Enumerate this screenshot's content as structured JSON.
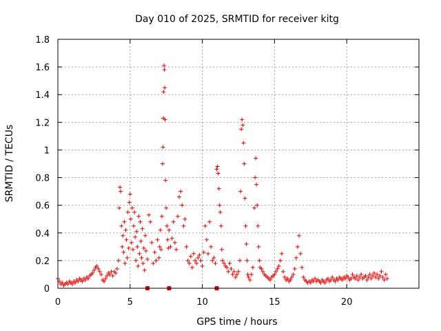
{
  "chart_data": {
    "type": "scatter",
    "title": "Day 010 of 2025, SRMTID for receiver kitg",
    "xlabel": "GPS time / hours",
    "ylabel": "SRMTID / TECUs",
    "xlim": [
      0,
      25
    ],
    "ylim": [
      0,
      1.8
    ],
    "xticks": [
      0,
      5,
      10,
      15,
      20
    ],
    "yticks": [
      0,
      0.2,
      0.4,
      0.6,
      0.8,
      1,
      1.2,
      1.4,
      1.6,
      1.8
    ],
    "ytick_labels": [
      "0",
      "0.2",
      "0.4",
      "0.6",
      "0.8",
      "1",
      "1.2",
      "1.4",
      "1.6",
      "1.8"
    ],
    "grid": true,
    "marker": "+",
    "color": "#e00000",
    "series": [
      {
        "name": "kitg",
        "points": [
          [
            0.0,
            0.07
          ],
          [
            0.1,
            0.05
          ],
          [
            0.2,
            0.03
          ],
          [
            0.3,
            0.04
          ],
          [
            0.4,
            0.02
          ],
          [
            0.5,
            0.03
          ],
          [
            0.6,
            0.04
          ],
          [
            0.7,
            0.03
          ],
          [
            0.8,
            0.05
          ],
          [
            0.9,
            0.04
          ],
          [
            1.0,
            0.03
          ],
          [
            1.1,
            0.05
          ],
          [
            1.2,
            0.04
          ],
          [
            1.3,
            0.06
          ],
          [
            1.4,
            0.05
          ],
          [
            1.5,
            0.07
          ],
          [
            1.6,
            0.06
          ],
          [
            1.7,
            0.05
          ],
          [
            1.8,
            0.07
          ],
          [
            1.9,
            0.06
          ],
          [
            2.0,
            0.08
          ],
          [
            2.1,
            0.07
          ],
          [
            2.2,
            0.09
          ],
          [
            2.3,
            0.1
          ],
          [
            2.4,
            0.11
          ],
          [
            2.5,
            0.13
          ],
          [
            2.6,
            0.15
          ],
          [
            2.7,
            0.16
          ],
          [
            2.8,
            0.14
          ],
          [
            2.9,
            0.12
          ],
          [
            3.0,
            0.1
          ],
          [
            3.1,
            0.06
          ],
          [
            3.2,
            0.05
          ],
          [
            3.3,
            0.07
          ],
          [
            3.4,
            0.09
          ],
          [
            3.5,
            0.11
          ],
          [
            3.6,
            0.1
          ],
          [
            3.7,
            0.12
          ],
          [
            3.8,
            0.09
          ],
          [
            3.9,
            0.12
          ],
          [
            4.0,
            0.11
          ],
          [
            4.1,
            0.14
          ],
          [
            4.2,
            0.2
          ],
          [
            4.25,
            0.58
          ],
          [
            4.3,
            0.73
          ],
          [
            4.35,
            0.7
          ],
          [
            4.4,
            0.45
          ],
          [
            4.45,
            0.3
          ],
          [
            4.5,
            0.38
          ],
          [
            4.55,
            0.26
          ],
          [
            4.6,
            0.48
          ],
          [
            4.65,
            0.18
          ],
          [
            4.7,
            0.42
          ],
          [
            4.75,
            0.35
          ],
          [
            4.8,
            0.22
          ],
          [
            4.85,
            0.55
          ],
          [
            4.9,
            0.29
          ],
          [
            4.95,
            0.62
          ],
          [
            5.0,
            0.68
          ],
          [
            5.05,
            0.5
          ],
          [
            5.1,
            0.33
          ],
          [
            5.15,
            0.58
          ],
          [
            5.2,
            0.28
          ],
          [
            5.25,
            0.45
          ],
          [
            5.3,
            0.55
          ],
          [
            5.35,
            0.37
          ],
          [
            5.4,
            0.2
          ],
          [
            5.45,
            0.41
          ],
          [
            5.5,
            0.3
          ],
          [
            5.55,
            0.16
          ],
          [
            5.6,
            0.52
          ],
          [
            5.65,
            0.25
          ],
          [
            5.7,
            0.48
          ],
          [
            5.75,
            0.34
          ],
          [
            5.8,
            0.22
          ],
          [
            5.85,
            0.43
          ],
          [
            5.9,
            0.18
          ],
          [
            5.95,
            0.29
          ],
          [
            6.0,
            0.13
          ],
          [
            6.05,
            0.38
          ],
          [
            6.1,
            0.27
          ],
          [
            6.2,
            0.21
          ],
          [
            6.3,
            0.53
          ],
          [
            6.4,
            0.48
          ],
          [
            6.5,
            0.33
          ],
          [
            6.6,
            0.18
          ],
          [
            6.7,
            0.26
          ],
          [
            6.8,
            0.2
          ],
          [
            6.9,
            0.35
          ],
          [
            7.0,
            0.22
          ],
          [
            7.05,
            0.3
          ],
          [
            7.1,
            0.42
          ],
          [
            7.15,
            0.28
          ],
          [
            7.2,
            0.52
          ],
          [
            7.25,
            0.9
          ],
          [
            7.28,
            1.02
          ],
          [
            7.3,
            1.23
          ],
          [
            7.32,
            1.42
          ],
          [
            7.35,
            1.61
          ],
          [
            7.38,
            1.58
          ],
          [
            7.4,
            1.45
          ],
          [
            7.42,
            1.22
          ],
          [
            7.45,
            0.78
          ],
          [
            7.5,
            0.58
          ],
          [
            7.55,
            0.45
          ],
          [
            7.6,
            0.35
          ],
          [
            7.65,
            0.29
          ],
          [
            7.7,
            0.42
          ],
          [
            7.8,
            0.3
          ],
          [
            7.9,
            0.36
          ],
          [
            8.0,
            0.48
          ],
          [
            8.1,
            0.33
          ],
          [
            8.2,
            0.28
          ],
          [
            8.3,
            0.52
          ],
          [
            8.4,
            0.66
          ],
          [
            8.5,
            0.7
          ],
          [
            8.6,
            0.6
          ],
          [
            8.7,
            0.45
          ],
          [
            8.8,
            0.5
          ],
          [
            8.9,
            0.3
          ],
          [
            9.0,
            0.2
          ],
          [
            9.1,
            0.18
          ],
          [
            9.2,
            0.23
          ],
          [
            9.3,
            0.15
          ],
          [
            9.4,
            0.25
          ],
          [
            9.5,
            0.2
          ],
          [
            9.6,
            0.18
          ],
          [
            9.7,
            0.22
          ],
          [
            9.8,
            0.24
          ],
          [
            9.9,
            0.2
          ],
          [
            10.0,
            0.16
          ],
          [
            10.1,
            0.26
          ],
          [
            10.2,
            0.45
          ],
          [
            10.3,
            0.35
          ],
          [
            10.4,
            0.25
          ],
          [
            10.5,
            0.48
          ],
          [
            10.6,
            0.3
          ],
          [
            10.7,
            0.2
          ],
          [
            10.8,
            0.22
          ],
          [
            10.9,
            0.18
          ],
          [
            11.0,
            0.86
          ],
          [
            11.05,
            0.88
          ],
          [
            11.1,
            0.83
          ],
          [
            11.15,
            0.72
          ],
          [
            11.2,
            0.6
          ],
          [
            11.25,
            0.55
          ],
          [
            11.3,
            0.45
          ],
          [
            11.35,
            0.28
          ],
          [
            11.4,
            0.2
          ],
          [
            11.5,
            0.18
          ],
          [
            11.6,
            0.16
          ],
          [
            11.7,
            0.15
          ],
          [
            11.8,
            0.12
          ],
          [
            11.9,
            0.18
          ],
          [
            12.0,
            0.14
          ],
          [
            12.1,
            0.1
          ],
          [
            12.2,
            0.12
          ],
          [
            12.3,
            0.08
          ],
          [
            12.4,
            0.1
          ],
          [
            12.5,
            0.12
          ],
          [
            12.6,
            0.2
          ],
          [
            12.65,
            0.7
          ],
          [
            12.7,
            1.15
          ],
          [
            12.75,
            1.22
          ],
          [
            12.8,
            1.18
          ],
          [
            12.85,
            1.05
          ],
          [
            12.9,
            0.9
          ],
          [
            12.95,
            0.65
          ],
          [
            13.0,
            0.45
          ],
          [
            13.05,
            0.32
          ],
          [
            13.1,
            0.2
          ],
          [
            13.15,
            0.1
          ],
          [
            13.2,
            0.08
          ],
          [
            13.3,
            0.06
          ],
          [
            13.4,
            0.1
          ],
          [
            13.5,
            0.15
          ],
          [
            13.6,
            0.58
          ],
          [
            13.65,
            0.8
          ],
          [
            13.7,
            0.94
          ],
          [
            13.75,
            0.75
          ],
          [
            13.8,
            0.6
          ],
          [
            13.85,
            0.45
          ],
          [
            13.9,
            0.3
          ],
          [
            13.95,
            0.2
          ],
          [
            14.0,
            0.15
          ],
          [
            14.1,
            0.14
          ],
          [
            14.2,
            0.12
          ],
          [
            14.3,
            0.1
          ],
          [
            14.4,
            0.09
          ],
          [
            14.5,
            0.08
          ],
          [
            14.6,
            0.07
          ],
          [
            14.7,
            0.06
          ],
          [
            14.8,
            0.08
          ],
          [
            14.9,
            0.09
          ],
          [
            15.0,
            0.1
          ],
          [
            15.1,
            0.12
          ],
          [
            15.2,
            0.14
          ],
          [
            15.3,
            0.16
          ],
          [
            15.4,
            0.2
          ],
          [
            15.5,
            0.25
          ],
          [
            15.6,
            0.12
          ],
          [
            15.7,
            0.08
          ],
          [
            15.8,
            0.06
          ],
          [
            15.9,
            0.07
          ],
          [
            16.0,
            0.05
          ],
          [
            16.1,
            0.06
          ],
          [
            16.2,
            0.08
          ],
          [
            16.3,
            0.1
          ],
          [
            16.4,
            0.14
          ],
          [
            16.5,
            0.22
          ],
          [
            16.6,
            0.3
          ],
          [
            16.7,
            0.38
          ],
          [
            16.8,
            0.25
          ],
          [
            16.9,
            0.15
          ],
          [
            17.0,
            0.08
          ],
          [
            17.1,
            0.06
          ],
          [
            17.2,
            0.05
          ],
          [
            17.3,
            0.04
          ],
          [
            17.4,
            0.05
          ],
          [
            17.5,
            0.04
          ],
          [
            17.6,
            0.06
          ],
          [
            17.7,
            0.05
          ],
          [
            17.8,
            0.07
          ],
          [
            17.9,
            0.05
          ],
          [
            18.0,
            0.06
          ],
          [
            18.1,
            0.05
          ],
          [
            18.2,
            0.04
          ],
          [
            18.3,
            0.06
          ],
          [
            18.4,
            0.05
          ],
          [
            18.5,
            0.04
          ],
          [
            18.6,
            0.06
          ],
          [
            18.7,
            0.07
          ],
          [
            18.8,
            0.05
          ],
          [
            18.9,
            0.06
          ],
          [
            19.0,
            0.08
          ],
          [
            19.1,
            0.06
          ],
          [
            19.2,
            0.05
          ],
          [
            19.3,
            0.07
          ],
          [
            19.4,
            0.06
          ],
          [
            19.5,
            0.08
          ],
          [
            19.6,
            0.07
          ],
          [
            19.7,
            0.06
          ],
          [
            19.8,
            0.08
          ],
          [
            19.9,
            0.07
          ],
          [
            20.0,
            0.09
          ],
          [
            20.1,
            0.08
          ],
          [
            20.2,
            0.06
          ],
          [
            20.3,
            0.07
          ],
          [
            20.4,
            0.1
          ],
          [
            20.5,
            0.08
          ],
          [
            20.6,
            0.07
          ],
          [
            20.7,
            0.09
          ],
          [
            20.8,
            0.06
          ],
          [
            20.9,
            0.08
          ],
          [
            21.0,
            0.1
          ],
          [
            21.1,
            0.07
          ],
          [
            21.2,
            0.08
          ],
          [
            21.3,
            0.09
          ],
          [
            21.4,
            0.06
          ],
          [
            21.5,
            0.08
          ],
          [
            21.6,
            0.1
          ],
          [
            21.7,
            0.07
          ],
          [
            21.8,
            0.09
          ],
          [
            21.9,
            0.11
          ],
          [
            22.0,
            0.08
          ],
          [
            22.1,
            0.1
          ],
          [
            22.2,
            0.07
          ],
          [
            22.3,
            0.09
          ],
          [
            22.4,
            0.12
          ],
          [
            22.5,
            0.08
          ],
          [
            22.6,
            0.06
          ],
          [
            22.7,
            0.1
          ],
          [
            22.8,
            0.07
          ]
        ],
        "zero_markers": [
          6.2,
          7.7,
          11.0
        ]
      }
    ]
  }
}
